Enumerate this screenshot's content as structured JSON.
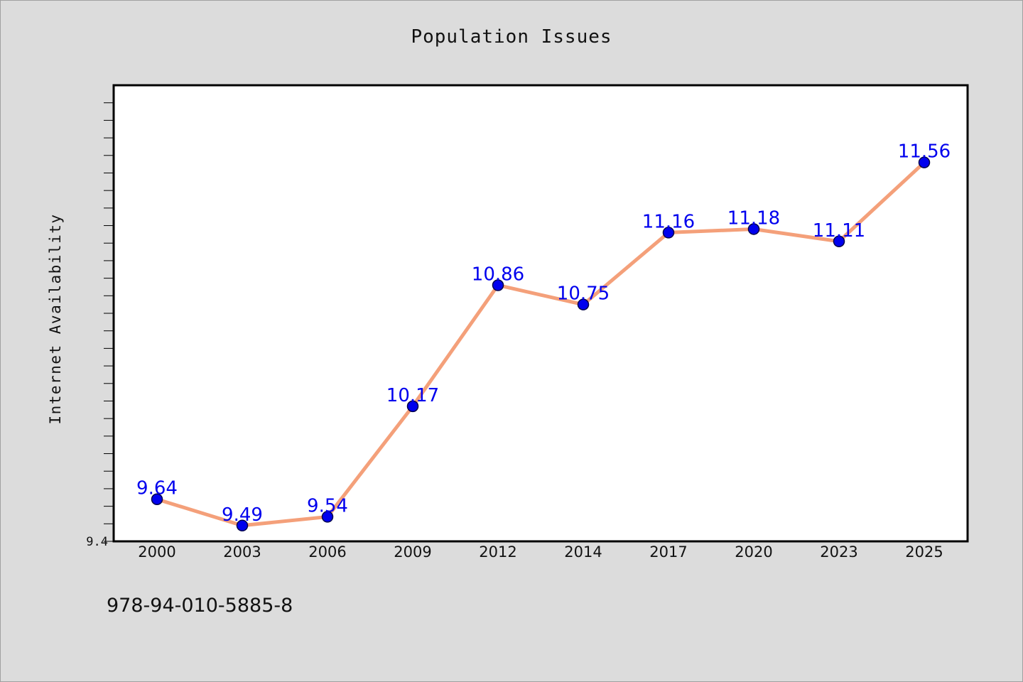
{
  "chart_data": {
    "type": "line",
    "title": "Population Issues",
    "xlabel": "",
    "ylabel": "Internet Availability",
    "categories": [
      "2000",
      "2003",
      "2006",
      "2009",
      "2012",
      "2014",
      "2017",
      "2020",
      "2023",
      "2025"
    ],
    "series": [
      {
        "values": [
          9.64,
          9.49,
          9.54,
          10.17,
          10.86,
          10.75,
          11.16,
          11.18,
          11.11,
          11.56
        ]
      }
    ],
    "ylim": [
      9.4,
      12.0
    ],
    "y_tick_labels": [
      "9.4"
    ],
    "grid": false,
    "legend": "none",
    "line_color": "#f4a07a",
    "marker_color": "#0000ee",
    "label_color": "#0000ee"
  },
  "footer": {
    "isbn": "978-94-010-5885-8"
  }
}
